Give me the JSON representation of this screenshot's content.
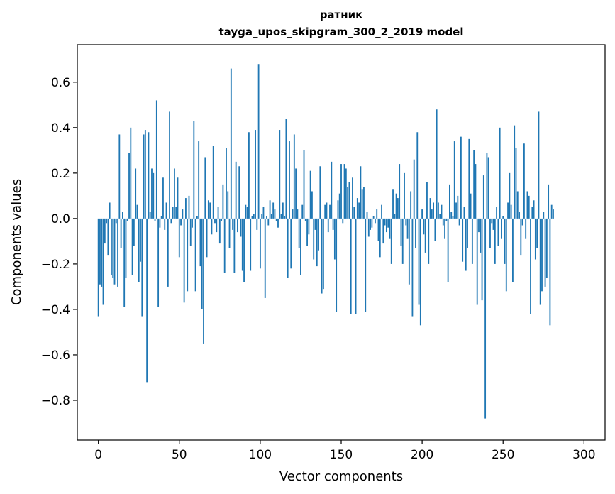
{
  "chart_data": {
    "type": "bar",
    "title": "ратник",
    "subtitle": "tayga_upos_skipgram_300_2_2019 model",
    "xlabel": "Vector components",
    "ylabel": "Components values",
    "xlim": [
      -13,
      313
    ],
    "ylim": [
      -0.975,
      0.765
    ],
    "xticks": [
      0,
      50,
      100,
      150,
      200,
      250,
      300
    ],
    "yticks": [
      -0.8,
      -0.6,
      -0.4,
      -0.2,
      0.0,
      0.2,
      0.4,
      0.6
    ],
    "ytick_labels": [
      "−0.8",
      "−0.6",
      "−0.4",
      "−0.2",
      "0.0",
      "0.2",
      "0.4",
      "0.6"
    ],
    "bar_color": "#1f77b4",
    "grid": false,
    "x_start": 0,
    "values": [
      -0.43,
      -0.29,
      -0.3,
      -0.38,
      -0.11,
      -0.02,
      -0.16,
      0.07,
      -0.25,
      -0.26,
      -0.29,
      -0.02,
      -0.3,
      0.37,
      -0.13,
      0.03,
      -0.39,
      -0.26,
      -0.01,
      0.29,
      0.4,
      -0.25,
      -0.12,
      0.22,
      0.06,
      -0.28,
      -0.19,
      -0.43,
      0.37,
      0.39,
      -0.72,
      0.38,
      0.03,
      0.22,
      0.2,
      -0.01,
      0.52,
      -0.39,
      -0.04,
      0.01,
      0.18,
      -0.05,
      0.07,
      -0.3,
      0.47,
      -0.02,
      0.05,
      0.22,
      0.05,
      0.18,
      -0.17,
      -0.03,
      0.04,
      -0.37,
      0.09,
      -0.32,
      0.1,
      -0.12,
      -0.04,
      0.43,
      -0.32,
      0.01,
      0.34,
      -0.21,
      -0.4,
      -0.55,
      0.27,
      -0.17,
      0.08,
      0.07,
      -0.07,
      0.32,
      -0.02,
      -0.06,
      0.05,
      -0.11,
      -0.01,
      0.15,
      -0.24,
      0.31,
      0.12,
      -0.13,
      0.66,
      -0.05,
      -0.24,
      0.25,
      -0.06,
      0.23,
      -0.08,
      -0.23,
      -0.28,
      0.06,
      0.05,
      0.38,
      -0.23,
      0.01,
      0.02,
      0.39,
      -0.05,
      0.68,
      -0.22,
      0.02,
      0.05,
      -0.35,
      0.01,
      -0.03,
      0.08,
      0.02,
      0.07,
      0.04,
      -0.01,
      -0.04,
      0.39,
      0.02,
      0.07,
      0.01,
      0.44,
      -0.26,
      0.34,
      -0.22,
      0.04,
      0.37,
      0.22,
      0.04,
      -0.13,
      -0.25,
      0.06,
      0.3,
      -0.01,
      -0.12,
      -0.07,
      0.21,
      0.12,
      -0.18,
      -0.05,
      -0.21,
      -0.14,
      0.23,
      -0.33,
      -0.31,
      0.06,
      0.07,
      -0.06,
      0.06,
      0.25,
      -0.05,
      -0.18,
      -0.41,
      0.08,
      0.11,
      0.24,
      -0.02,
      0.24,
      0.22,
      0.14,
      0.16,
      -0.42,
      0.18,
      0.05,
      -0.42,
      0.09,
      0.07,
      0.23,
      0.13,
      0.14,
      -0.41,
      0.03,
      -0.08,
      -0.05,
      -0.04,
      0.01,
      -0.02,
      0.04,
      -0.1,
      -0.17,
      0.06,
      -0.11,
      -0.03,
      -0.06,
      -0.04,
      -0.09,
      -0.2,
      0.13,
      0.02,
      0.11,
      0.09,
      0.24,
      -0.12,
      -0.2,
      0.2,
      -0.03,
      -0.09,
      -0.29,
      0.12,
      -0.43,
      0.26,
      -0.13,
      0.38,
      -0.38,
      -0.47,
      0.04,
      -0.07,
      -0.15,
      0.16,
      -0.2,
      0.09,
      0.04,
      0.07,
      -0.1,
      0.48,
      0.07,
      0.02,
      0.06,
      -0.03,
      -0.09,
      -0.01,
      -0.28,
      0.15,
      0.03,
      0.01,
      0.34,
      0.07,
      0.1,
      -0.03,
      0.36,
      -0.19,
      0.05,
      -0.23,
      -0.13,
      0.35,
      0.11,
      -0.2,
      0.3,
      0.24,
      -0.38,
      -0.06,
      -0.15,
      -0.36,
      0.19,
      -0.88,
      0.29,
      0.27,
      -0.13,
      -0.02,
      -0.05,
      -0.2,
      0.05,
      -0.12,
      0.4,
      -0.09,
      0.01,
      -0.2,
      -0.32,
      0.07,
      0.2,
      0.06,
      -0.28,
      0.41,
      0.31,
      0.12,
      0.03,
      -0.16,
      -0.03,
      0.33,
      -0.09,
      0.12,
      0.1,
      -0.42,
      0.05,
      0.08,
      -0.18,
      -0.13,
      0.47,
      -0.38,
      -0.32,
      0.03,
      -0.3,
      -0.26,
      0.15,
      -0.47,
      0.06,
      0.04
    ]
  }
}
